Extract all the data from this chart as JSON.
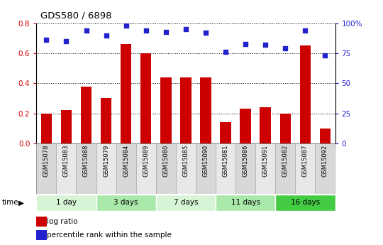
{
  "title": "GDS580 / 6898",
  "samples": [
    "GSM15078",
    "GSM15083",
    "GSM15088",
    "GSM15079",
    "GSM15084",
    "GSM15089",
    "GSM15080",
    "GSM15085",
    "GSM15090",
    "GSM15081",
    "GSM15086",
    "GSM15091",
    "GSM15082",
    "GSM15087",
    "GSM15092"
  ],
  "log_ratio": [
    0.2,
    0.22,
    0.38,
    0.3,
    0.66,
    0.6,
    0.44,
    0.44,
    0.44,
    0.14,
    0.23,
    0.24,
    0.2,
    0.65,
    0.1
  ],
  "percentile_rank": [
    86,
    85,
    94,
    90,
    98,
    94,
    93,
    95,
    92,
    76,
    83,
    82,
    79,
    94,
    73
  ],
  "groups": [
    {
      "label": "1 day",
      "indices": [
        0,
        1,
        2
      ],
      "color": "#d6f5d6"
    },
    {
      "label": "3 days",
      "indices": [
        3,
        4,
        5
      ],
      "color": "#aae8aa"
    },
    {
      "label": "7 days",
      "indices": [
        6,
        7,
        8
      ],
      "color": "#d6f5d6"
    },
    {
      "label": "11 days",
      "indices": [
        9,
        10,
        11
      ],
      "color": "#aae8aa"
    },
    {
      "label": "16 days",
      "indices": [
        12,
        13,
        14
      ],
      "color": "#44cc44"
    }
  ],
  "bar_color": "#cc0000",
  "dot_color": "#2222cc",
  "ylim_left": [
    0,
    0.8
  ],
  "ylim_right": [
    0,
    100
  ],
  "yticks_left": [
    0,
    0.2,
    0.4,
    0.6,
    0.8
  ],
  "yticks_right": [
    0,
    25,
    50,
    75,
    100
  ],
  "tick_label_color_left": "#cc0000",
  "tick_label_color_right": "#2222cc",
  "sample_col_color_odd": "#d8d8d8",
  "sample_col_color_even": "#e8e8e8"
}
